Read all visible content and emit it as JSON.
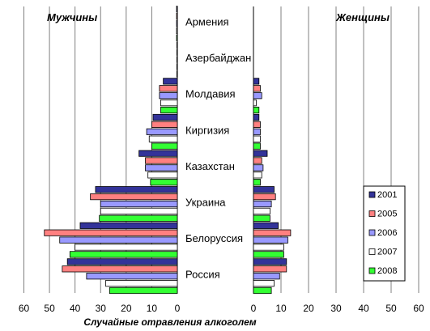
{
  "chart_data": {
    "type": "bar",
    "orientation": "horizontal",
    "layout": "population-pyramid",
    "xlabel": "Случайные отравления алкоголем",
    "left_panel": {
      "title": "Мужчины",
      "xlim": [
        0,
        60
      ],
      "ticks": [
        "60",
        "50",
        "40",
        "30",
        "20",
        "10",
        "0"
      ]
    },
    "right_panel": {
      "title": "Женщины",
      "xlim": [
        0,
        60
      ],
      "ticks": [
        "0",
        "10",
        "20",
        "30",
        "40",
        "50",
        "60"
      ]
    },
    "categories": [
      "Армения",
      "Азербайджан",
      "Молдавия",
      "Киргизия",
      "Казахстан",
      "Украина",
      "Белоруссия",
      "Россия"
    ],
    "series": [
      {
        "name": "2001",
        "color": "#333399",
        "men": [
          0.3,
          0.2,
          5.5,
          9.5,
          15,
          32,
          38,
          43
        ],
        "women": [
          0,
          0,
          2,
          2,
          5,
          7.5,
          9,
          12
        ]
      },
      {
        "name": "2005",
        "color": "#ff8080",
        "men": [
          0.3,
          0.2,
          7,
          10,
          12.5,
          34,
          52,
          45
        ],
        "women": [
          0,
          0,
          2.5,
          2.5,
          3,
          8,
          13.5,
          12
        ]
      },
      {
        "name": "2006",
        "color": "#9999ff",
        "men": [
          0.3,
          0.2,
          7,
          12,
          12.5,
          30,
          46,
          35.5
        ],
        "women": [
          0,
          0,
          3,
          2.5,
          3.5,
          6.5,
          12.5,
          9.5
        ]
      },
      {
        "name": "2007",
        "color": "#ffffff",
        "men": [
          0.3,
          0.2,
          6.5,
          11,
          11.5,
          30,
          40,
          28
        ],
        "women": [
          0,
          0,
          1,
          2.5,
          3,
          6,
          11,
          7.5
        ]
      },
      {
        "name": "2008",
        "color": "#33ff33",
        "men": [
          0.3,
          0.2,
          6.5,
          10,
          10.5,
          30.5,
          42,
          26.5
        ],
        "women": [
          0,
          0,
          2,
          2.5,
          2.5,
          6,
          11,
          6.5
        ]
      }
    ],
    "grid": true,
    "legend_position": "right"
  }
}
